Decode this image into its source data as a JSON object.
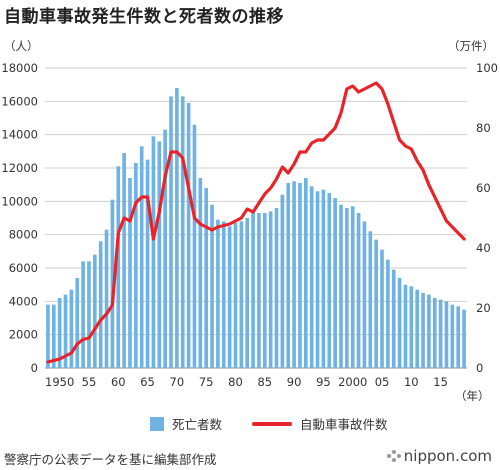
{
  "title": "自動車事故発生件数と死者数の推移",
  "left_unit": "（人）",
  "right_unit": "（万件）",
  "year_unit": "（年）",
  "source": "警察庁の公表データを基に編集部作成",
  "logo": "nippon.com",
  "legend": {
    "bar_label": "死亡者数",
    "line_label": "自動車事故件数"
  },
  "colors": {
    "bar": "#6fb3e5",
    "line": "#e8232a",
    "grid": "#cfcfcf"
  },
  "chart_data": {
    "type": "bar+line",
    "x": [
      1948,
      1949,
      1950,
      1951,
      1952,
      1953,
      1954,
      1955,
      1956,
      1957,
      1958,
      1959,
      1960,
      1961,
      1962,
      1963,
      1964,
      1965,
      1966,
      1967,
      1968,
      1969,
      1970,
      1971,
      1972,
      1973,
      1974,
      1975,
      1976,
      1977,
      1978,
      1979,
      1980,
      1981,
      1982,
      1983,
      1984,
      1985,
      1986,
      1987,
      1988,
      1989,
      1990,
      1991,
      1992,
      1993,
      1994,
      1995,
      1996,
      1997,
      1998,
      1999,
      2000,
      2001,
      2002,
      2003,
      2004,
      2005,
      2006,
      2007,
      2008,
      2009,
      2010,
      2011,
      2012,
      2013,
      2014,
      2015,
      2016,
      2017,
      2018,
      2019
    ],
    "x_ticks": [
      "1950",
      "55",
      "60",
      "65",
      "70",
      "75",
      "80",
      "85",
      "90",
      "95",
      "2000",
      "05",
      "10",
      "15"
    ],
    "x_tick_years": [
      1950,
      1955,
      1960,
      1965,
      1970,
      1975,
      1980,
      1985,
      1990,
      1995,
      2000,
      2005,
      2010,
      2015
    ],
    "series": [
      {
        "name": "死亡者数",
        "kind": "bar",
        "axis": "left",
        "values": [
          3800,
          3800,
          4200,
          4400,
          4700,
          5400,
          6400,
          6400,
          6800,
          7600,
          8300,
          10100,
          12100,
          12900,
          11400,
          12300,
          13300,
          12500,
          13900,
          13600,
          14300,
          16300,
          16800,
          16300,
          15900,
          14600,
          11400,
          10800,
          9800,
          8900,
          8800,
          8500,
          8700,
          8800,
          9000,
          9500,
          9300,
          9300,
          9400,
          9600,
          10400,
          11100,
          11200,
          11100,
          11400,
          10900,
          10600,
          10700,
          10500,
          10200,
          9800,
          9600,
          9700,
          9300,
          8800,
          8200,
          7700,
          7100,
          6500,
          5900,
          5400,
          5000,
          4900,
          4700,
          4500,
          4400,
          4200,
          4100,
          4000,
          3800,
          3700,
          3500
        ]
      },
      {
        "name": "自動車事故件数",
        "kind": "line",
        "axis": "right",
        "values": [
          2,
          2.5,
          3,
          4,
          5,
          8,
          9.5,
          10,
          13,
          16,
          18,
          21,
          45,
          50,
          49,
          55,
          57,
          57,
          43,
          52,
          64,
          72,
          72,
          70,
          60,
          50,
          48,
          47,
          46,
          47,
          47.5,
          48,
          49,
          50,
          53,
          52,
          55,
          58,
          60,
          63,
          67,
          65,
          68,
          72,
          72,
          75,
          76,
          76,
          78,
          80,
          85,
          93,
          94,
          92,
          93,
          94,
          95,
          93,
          88,
          82,
          76,
          74,
          73,
          69,
          66,
          61,
          57,
          53,
          49,
          47,
          45,
          43
        ]
      }
    ],
    "ylim_left": [
      0,
      18000
    ],
    "yticks_left": [
      "0",
      "2000",
      "4000",
      "6000",
      "8000",
      "10000",
      "12000",
      "14000",
      "16000",
      "18000"
    ],
    "ylim_right": [
      0,
      100
    ],
    "yticks_right": [
      "0",
      "20",
      "40",
      "60",
      "80",
      "100"
    ],
    "grid": true,
    "legend_position": "bottom"
  }
}
